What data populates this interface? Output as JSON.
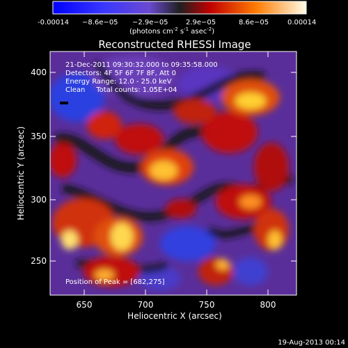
{
  "colorbar": {
    "tick_labels": [
      "-0.00014",
      "−8.6e−05",
      "−2.9e−05",
      "2.9e−05",
      "8.6e−05",
      "0.00014"
    ],
    "units_prefix": "(photons cm",
    "units_sup1": "-2",
    "units_mid1": " s",
    "units_sup2": "-1",
    "units_mid2": " asec",
    "units_sup3": "-2",
    "units_suffix": ")"
  },
  "plot": {
    "title": "Reconstructed RHESSI Image",
    "info_lines": [
      "21-Dec-2011 09:30:32.000 to 09:35:58.000",
      "Detectors: 4F 5F 6F 7F 8F, Att 0",
      "Energy Range: 12.0 - 25.0 keV",
      "Clean     Total counts: 1.05E+04"
    ],
    "peak_label": "Position of Peak = [682,275]",
    "xlabel": "Heliocentric X (arcsec)",
    "ylabel": "Heliocentric Y (arcsec)",
    "x_ticks": [
      "650",
      "700",
      "750",
      "800"
    ],
    "y_ticks": [
      "250",
      "300",
      "350",
      "400"
    ]
  },
  "footer": {
    "date_stamp": "19-Aug-2013 00:14"
  }
}
